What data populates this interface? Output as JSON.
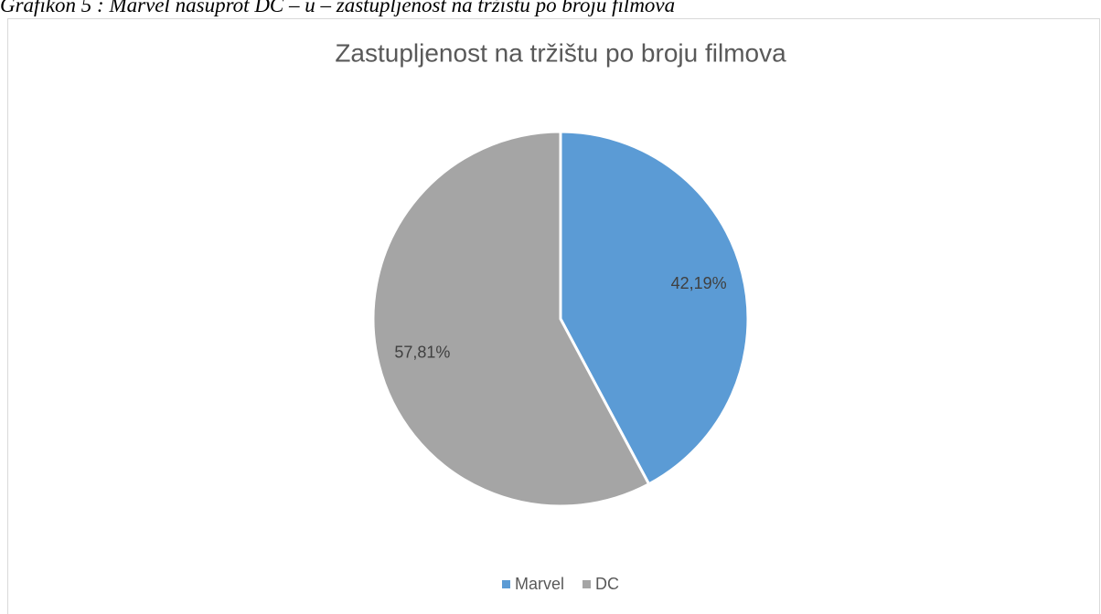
{
  "caption": "Grafikon 5 : Marvel nasuprot DC – u – zastupljenost na tržištu po broju filmova",
  "chart_data": {
    "type": "pie",
    "title": "Zastupljenost na tržištu po broju filmova",
    "categories": [
      "Marvel",
      "DC"
    ],
    "values": [
      42.19,
      57.81
    ],
    "value_labels": [
      "42,19%",
      "57,81%"
    ],
    "colors": [
      "#5b9bd5",
      "#a5a5a5"
    ],
    "legend": "bottom"
  }
}
